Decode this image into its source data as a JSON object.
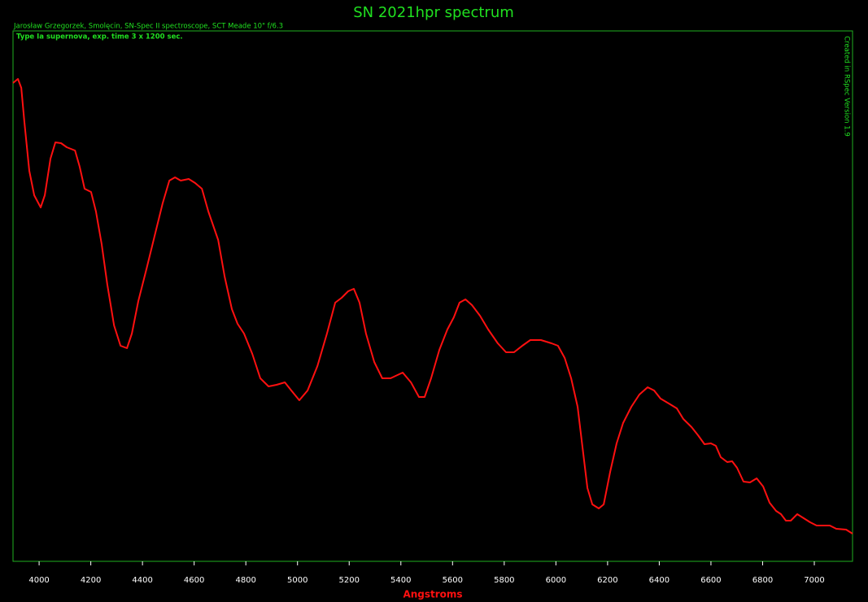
{
  "chart_data": {
    "type": "line",
    "title": "SN 2021hpr spectrum",
    "subtitle": "Jarosław Grzegorzek, Smolęcin, SN-Spec II spectroscope, SCT Meade 10\" f/6.3",
    "annotation": "Type Ia supernova, exp. time 3 x 1200 sec.",
    "credit": "Created in RSpec Version 1.9",
    "x_label": "Angstroms",
    "x": [
      3899,
      3918,
      3931,
      3943,
      3962,
      3981,
      4006,
      4022,
      4044,
      4063,
      4085,
      4107,
      4139,
      4157,
      4176,
      4201,
      4220,
      4242,
      4264,
      4290,
      4315,
      4340,
      4359,
      4384,
      4416,
      4447,
      4478,
      4504,
      4526,
      4548,
      4579,
      4604,
      4630,
      4655,
      4693,
      4718,
      4746,
      4768,
      4793,
      4825,
      4856,
      4888,
      4919,
      4951,
      4976,
      5007,
      5039,
      5077,
      5114,
      5146,
      5171,
      5196,
      5218,
      5240,
      5265,
      5297,
      5328,
      5360,
      5407,
      5439,
      5470,
      5492,
      5517,
      5549,
      5580,
      5605,
      5627,
      5650,
      5675,
      5706,
      5738,
      5775,
      5807,
      5838,
      5870,
      5901,
      5942,
      5983,
      6008,
      6034,
      6059,
      6084,
      6103,
      6122,
      6141,
      6166,
      6185,
      6210,
      6235,
      6260,
      6292,
      6323,
      6355,
      6380,
      6405,
      6437,
      6468,
      6493,
      6525,
      6550,
      6575,
      6600,
      6619,
      6638,
      6663,
      6682,
      6701,
      6726,
      6751,
      6777,
      6802,
      6827,
      6852,
      6871,
      6890,
      6909,
      6934,
      6959,
      6984,
      7009,
      7035,
      7060,
      7085,
      7123,
      7148
    ],
    "series": [
      {
        "color": "#ff1010",
        "values": [
          588,
          593,
          582,
          540,
          480,
          450,
          435,
          450,
          495,
          515,
          514,
          509,
          505,
          485,
          458,
          454,
          430,
          390,
          340,
          290,
          265,
          262,
          280,
          320,
          360,
          400,
          440,
          468,
          472,
          468,
          470,
          465,
          458,
          430,
          395,
          350,
          310,
          292,
          280,
          255,
          225,
          215,
          217,
          220,
          210,
          198,
          210,
          240,
          280,
          318,
          324,
          332,
          335,
          318,
          280,
          245,
          225,
          225,
          232,
          220,
          202,
          202,
          225,
          260,
          285,
          300,
          318,
          322,
          315,
          302,
          285,
          268,
          257,
          257,
          265,
          272,
          272,
          268,
          265,
          250,
          225,
          190,
          140,
          90,
          70,
          65,
          70,
          110,
          145,
          170,
          190,
          205,
          214,
          210,
          200,
          194,
          188,
          175,
          165,
          155,
          144,
          145,
          142,
          128,
          122,
          123,
          115,
          98,
          97,
          102,
          92,
          72,
          62,
          58,
          50,
          50,
          58,
          53,
          48,
          44,
          44,
          44,
          40,
          39,
          34
        ]
      }
    ],
    "xlim": [
      3899,
      7148
    ],
    "ylim": [
      0,
      652
    ],
    "xticks": [
      4000,
      4200,
      4400,
      4600,
      4800,
      5000,
      5200,
      5400,
      5600,
      5800,
      6000,
      6200,
      6400,
      6600,
      6800,
      7000
    ]
  }
}
